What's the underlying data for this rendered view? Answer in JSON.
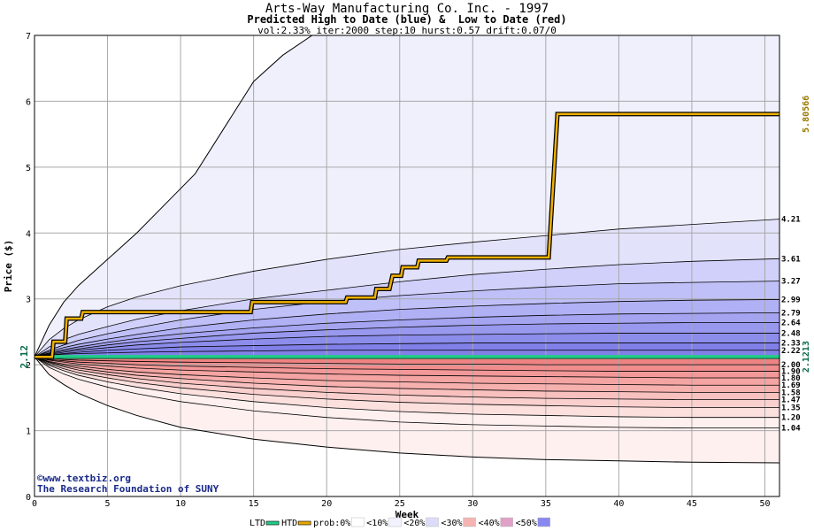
{
  "chart_data": {
    "type": "area",
    "title": "Arts-Way Manufacturing Co. Inc. - 1997",
    "subtitle": "Predicted High to Date (blue) &  Low to Date (red)",
    "params": "vol:2.33% iter:2000 step:10 hurst:0.57 drift:0.07/0",
    "xlabel": "Week",
    "ylabel": "Price ($)",
    "xlim": [
      0,
      51
    ],
    "ylim": [
      0,
      7
    ],
    "x_ticks": [
      0,
      5,
      10,
      15,
      20,
      25,
      30,
      35,
      40,
      45,
      50
    ],
    "y_ticks": [
      0,
      1,
      2,
      3,
      4,
      5,
      6,
      7
    ],
    "grid": true,
    "start_price": 2.12,
    "start_label": "2.12",
    "ltd_value": 2.1213,
    "ltd_label": "2.1213",
    "htd_value": 5.80566,
    "htd_label": "5.80566",
    "x": [
      0,
      1,
      2,
      3,
      5,
      7,
      10,
      15,
      20,
      25,
      30,
      35,
      40,
      45,
      51
    ],
    "series": [
      {
        "right_label": "4.21",
        "values": [
          2.12,
          2.38,
          2.55,
          2.68,
          2.88,
          3.03,
          3.2,
          3.42,
          3.6,
          3.75,
          3.86,
          3.96,
          4.06,
          4.13,
          4.21
        ]
      },
      {
        "right_label": "3.61",
        "values": [
          2.12,
          2.27,
          2.38,
          2.46,
          2.58,
          2.69,
          2.82,
          3.0,
          3.13,
          3.26,
          3.37,
          3.45,
          3.52,
          3.57,
          3.61
        ]
      },
      {
        "right_label": "3.27",
        "values": [
          2.12,
          2.22,
          2.3,
          2.37,
          2.47,
          2.56,
          2.68,
          2.84,
          2.96,
          3.05,
          3.12,
          3.18,
          3.23,
          3.25,
          3.27
        ]
      },
      {
        "right_label": "2.99",
        "values": [
          2.12,
          2.2,
          2.26,
          2.31,
          2.39,
          2.46,
          2.56,
          2.68,
          2.77,
          2.84,
          2.89,
          2.93,
          2.96,
          2.98,
          2.99
        ]
      },
      {
        "right_label": "2.79",
        "values": [
          2.12,
          2.18,
          2.23,
          2.27,
          2.34,
          2.4,
          2.47,
          2.56,
          2.63,
          2.68,
          2.72,
          2.75,
          2.77,
          2.78,
          2.79
        ]
      },
      {
        "right_label": "2.64",
        "values": [
          2.12,
          2.17,
          2.21,
          2.24,
          2.3,
          2.35,
          2.4,
          2.48,
          2.53,
          2.57,
          2.6,
          2.62,
          2.63,
          2.64,
          2.64
        ]
      },
      {
        "right_label": "2.48",
        "values": [
          2.12,
          2.16,
          2.19,
          2.22,
          2.26,
          2.3,
          2.34,
          2.39,
          2.43,
          2.45,
          2.46,
          2.47,
          2.48,
          2.48,
          2.48
        ]
      },
      {
        "right_label": "2.33",
        "values": [
          2.12,
          2.15,
          2.17,
          2.19,
          2.22,
          2.24,
          2.27,
          2.29,
          2.31,
          2.32,
          2.33,
          2.33,
          2.33,
          2.33,
          2.33
        ]
      },
      {
        "right_label": "2.22",
        "values": [
          2.12,
          2.14,
          2.16,
          2.17,
          2.18,
          2.19,
          2.2,
          2.21,
          2.22,
          2.22,
          2.22,
          2.22,
          2.22,
          2.22,
          2.22
        ]
      },
      {
        "right_label": "2.00",
        "values": [
          2.12,
          2.1,
          2.08,
          2.07,
          2.06,
          2.05,
          2.04,
          2.03,
          2.02,
          2.01,
          2.01,
          2.0,
          2.0,
          2.0,
          2.0
        ]
      },
      {
        "right_label": "1.90",
        "values": [
          2.12,
          2.08,
          2.06,
          2.04,
          2.02,
          2.0,
          1.98,
          1.96,
          1.94,
          1.93,
          1.92,
          1.91,
          1.9,
          1.9,
          1.9
        ]
      },
      {
        "right_label": "1.80",
        "values": [
          2.12,
          2.07,
          2.04,
          2.01,
          1.98,
          1.95,
          1.92,
          1.89,
          1.86,
          1.84,
          1.83,
          1.82,
          1.81,
          1.8,
          1.8
        ]
      },
      {
        "right_label": "1.69",
        "values": [
          2.12,
          2.05,
          2.01,
          1.98,
          1.93,
          1.89,
          1.85,
          1.8,
          1.76,
          1.74,
          1.72,
          1.71,
          1.7,
          1.69,
          1.69
        ]
      },
      {
        "right_label": "1.58",
        "values": [
          2.12,
          2.04,
          1.99,
          1.95,
          1.89,
          1.84,
          1.79,
          1.72,
          1.67,
          1.64,
          1.62,
          1.6,
          1.59,
          1.58,
          1.58
        ]
      },
      {
        "right_label": "1.47",
        "values": [
          2.12,
          2.03,
          1.97,
          1.92,
          1.85,
          1.79,
          1.72,
          1.64,
          1.58,
          1.54,
          1.51,
          1.49,
          1.48,
          1.47,
          1.47
        ]
      },
      {
        "right_label": "1.35",
        "values": [
          2.12,
          2.01,
          1.94,
          1.88,
          1.8,
          1.73,
          1.65,
          1.55,
          1.48,
          1.43,
          1.4,
          1.38,
          1.36,
          1.35,
          1.35
        ]
      },
      {
        "right_label": "1.20",
        "values": [
          2.12,
          1.99,
          1.91,
          1.84,
          1.74,
          1.66,
          1.56,
          1.44,
          1.35,
          1.29,
          1.25,
          1.23,
          1.21,
          1.2,
          1.2
        ]
      },
      {
        "right_label": "1.04",
        "values": [
          2.12,
          1.96,
          1.86,
          1.78,
          1.66,
          1.56,
          1.44,
          1.3,
          1.2,
          1.13,
          1.09,
          1.07,
          1.05,
          1.04,
          1.04
        ]
      }
    ],
    "outer_high": {
      "x": [
        0,
        1,
        2,
        3,
        5,
        7,
        9,
        11,
        13,
        15,
        17,
        19,
        20,
        51
      ],
      "values": [
        2.12,
        2.6,
        2.95,
        3.2,
        3.6,
        4.0,
        4.45,
        4.9,
        5.6,
        6.3,
        6.7,
        7.0,
        7.0,
        7.0
      ]
    },
    "outer_low": {
      "x": [
        0,
        1,
        2,
        3,
        5,
        7,
        10,
        15,
        20,
        25,
        30,
        35,
        40,
        45,
        51
      ],
      "values": [
        2.12,
        1.85,
        1.7,
        1.57,
        1.38,
        1.23,
        1.05,
        0.87,
        0.75,
        0.66,
        0.6,
        0.56,
        0.54,
        0.52,
        0.51
      ]
    },
    "htd_path": {
      "x": [
        0,
        1.2,
        1.3,
        2.1,
        2.2,
        3.2,
        3.3,
        14.8,
        14.9,
        21.3,
        21.4,
        23.3,
        23.4,
        24.3,
        24.5,
        25.1,
        25.2,
        26.2,
        26.3,
        28.2,
        28.3,
        35.2,
        35.8,
        51
      ],
      "values": [
        2.12,
        2.12,
        2.35,
        2.35,
        2.7,
        2.7,
        2.8,
        2.8,
        2.95,
        2.95,
        3.02,
        3.02,
        3.15,
        3.15,
        3.35,
        3.35,
        3.48,
        3.48,
        3.58,
        3.58,
        3.63,
        3.63,
        5.80566,
        5.80566
      ]
    },
    "legend": [
      {
        "label": "LTD",
        "color": "#22cc88"
      },
      {
        "label": "HTD",
        "color": "#e8a600"
      },
      {
        "label": "prob:0%",
        "color": "#ffffff"
      },
      {
        "label": "<10%",
        "color": "#f2f2ff"
      },
      {
        "label": "<20%",
        "color": "#dcdcfa"
      },
      {
        "label": "<30%",
        "color": "#f4b4b4"
      },
      {
        "label": "<40%",
        "color": "#e0a0c8"
      },
      {
        "label": "<50%",
        "color": "#8888ee"
      }
    ],
    "band_colors_high": [
      "#f0f0fd",
      "#e2e2fb",
      "#d0d0fa",
      "#c0c0f8",
      "#b0b0f5",
      "#a4a4f1",
      "#9898ee",
      "#8c8ceb",
      "#8080e8",
      "#8080e8"
    ],
    "band_colors_low": [
      "#fdf0ef",
      "#fbe0de",
      "#f9d0ce",
      "#f8c0be",
      "#f6b0ae",
      "#f4a4a2",
      "#f29898",
      "#f08c8c",
      "#ef8282"
    ]
  },
  "footer": {
    "credit_1": "©www.textbiz.org",
    "credit_2": "The Research Foundation of SUNY"
  }
}
